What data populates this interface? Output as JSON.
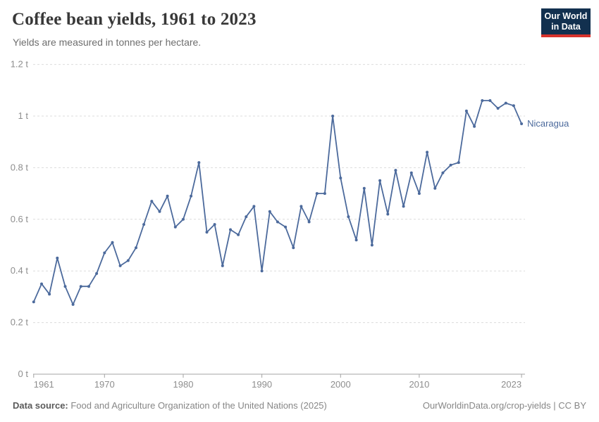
{
  "header": {
    "title": "Coffee bean yields, 1961 to 2023",
    "subtitle": "Yields are measured in tonnes per hectare."
  },
  "logo": {
    "line1": "Our World",
    "line2": "in Data",
    "bg_color": "#12304f",
    "stripe_color": "#d7332d"
  },
  "chart_data": {
    "type": "line",
    "title": "Coffee bean yields, 1961 to 2023",
    "subtitle": "Yields are measured in tonnes per hectare.",
    "xlabel": "",
    "ylabel": "tonnes per hectare",
    "unit_suffix": " t",
    "ylim": [
      0,
      1.2
    ],
    "yticks": [
      0,
      0.2,
      0.4,
      0.6,
      0.8,
      1,
      1.2
    ],
    "ytick_labels": [
      "0 t",
      "0.2 t",
      "0.4 t",
      "0.6 t",
      "0.8 t",
      "1 t",
      "1.2 t"
    ],
    "xticks": [
      1961,
      1970,
      1980,
      1990,
      2000,
      2010,
      2023
    ],
    "grid": "horizontal-dashed",
    "legend_position": "end-of-line-label",
    "x": [
      1961,
      1962,
      1963,
      1964,
      1965,
      1966,
      1967,
      1968,
      1969,
      1970,
      1971,
      1972,
      1973,
      1974,
      1975,
      1976,
      1977,
      1978,
      1979,
      1980,
      1981,
      1982,
      1983,
      1984,
      1985,
      1986,
      1987,
      1988,
      1989,
      1990,
      1991,
      1992,
      1993,
      1994,
      1995,
      1996,
      1997,
      1998,
      1999,
      2000,
      2001,
      2002,
      2003,
      2004,
      2005,
      2006,
      2007,
      2008,
      2009,
      2010,
      2011,
      2012,
      2013,
      2014,
      2015,
      2016,
      2017,
      2018,
      2019,
      2020,
      2021,
      2022,
      2023
    ],
    "series": [
      {
        "name": "Nicaragua",
        "color": "#4c6a9c",
        "values": [
          0.28,
          0.35,
          0.31,
          0.45,
          0.34,
          0.27,
          0.34,
          0.34,
          0.39,
          0.47,
          0.51,
          0.42,
          0.44,
          0.49,
          0.58,
          0.67,
          0.63,
          0.69,
          0.57,
          0.6,
          0.69,
          0.82,
          0.55,
          0.58,
          0.42,
          0.56,
          0.54,
          0.61,
          0.65,
          0.4,
          0.63,
          0.59,
          0.57,
          0.49,
          0.65,
          0.59,
          0.7,
          0.7,
          1.0,
          0.76,
          0.61,
          0.52,
          0.72,
          0.5,
          0.75,
          0.62,
          0.79,
          0.65,
          0.78,
          0.7,
          0.86,
          0.72,
          0.78,
          0.81,
          0.82,
          1.02,
          0.96,
          1.06,
          1.06,
          1.03,
          1.05,
          1.04,
          0.97
        ]
      }
    ]
  },
  "footer": {
    "source_label": "Data source:",
    "source_text": " Food and Agriculture Organization of the United Nations (2025)",
    "credit": "OurWorldinData.org/crop-yields | CC BY"
  }
}
